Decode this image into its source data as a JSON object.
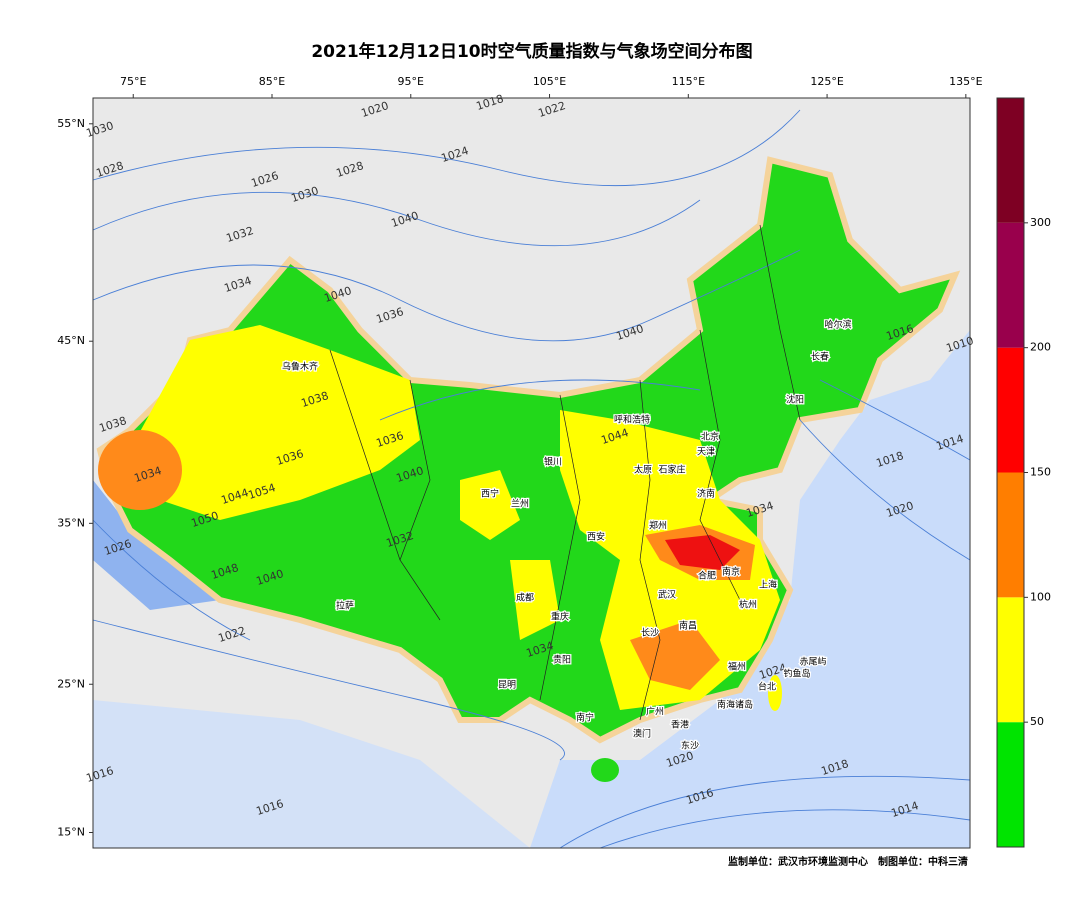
{
  "title": "2021年12月12日10时空气质量指数与气象场空间分布图",
  "map": {
    "lonlim": [
      72.1,
      135.3
    ],
    "latlim": [
      13.92,
      56.05
    ],
    "lonticks": [
      {
        "value": 75,
        "label": "75°E"
      },
      {
        "value": 85,
        "label": "85°E"
      },
      {
        "value": 95,
        "label": "95°E"
      },
      {
        "value": 105,
        "label": "105°E"
      },
      {
        "value": 115,
        "label": "115°E"
      },
      {
        "value": 125,
        "label": "125°E"
      },
      {
        "value": 135,
        "label": "135°E"
      }
    ],
    "latticks": [
      {
        "value": 15,
        "label": "15°N"
      },
      {
        "value": 25,
        "label": "25°N"
      },
      {
        "value": 35,
        "label": "35°N"
      },
      {
        "value": 45,
        "label": "45°N"
      },
      {
        "value": 55,
        "label": "55°N"
      }
    ],
    "cities": [
      "乌鲁木齐",
      "呼和浩特",
      "哈尔滨",
      "长春",
      "沈阳",
      "北京",
      "天津",
      "太原",
      "石家庄",
      "济南",
      "西宁",
      "兰州",
      "银川",
      "郑州",
      "西安",
      "合肥",
      "南京",
      "上海",
      "杭州",
      "武汉",
      "成都",
      "重庆",
      "长沙",
      "南昌",
      "贵阳",
      "福州",
      "台北",
      "昆明",
      "南宁",
      "广州",
      "香港",
      "澳门",
      "拉萨",
      "钓鱼岛",
      "赤尾屿",
      "南海诸岛",
      "东沙"
    ],
    "isobar_labels": [
      1030,
      1028,
      1026,
      1030,
      1028,
      1020,
      1018,
      1022,
      1024,
      1032,
      1034,
      1040,
      1040,
      1036,
      1040,
      1038,
      1036,
      1036,
      1040,
      1044,
      1034,
      1038,
      1044,
      1054,
      1050,
      1032,
      1048,
      1040,
      1026,
      1022,
      1034,
      1034,
      1018,
      1020,
      1014,
      1016,
      1010,
      1024,
      1020,
      1018,
      1016,
      1014,
      1016,
      1016
    ]
  },
  "colorbar": {
    "colors": [
      "#00e400",
      "#ffff00",
      "#ff7e00",
      "#ff0000",
      "#99004c",
      "#7e0023"
    ],
    "ticks": [
      50,
      100,
      150,
      200,
      300
    ]
  },
  "footer": "监制单位：武汉市环境监测中心　制图单位：中科三清"
}
